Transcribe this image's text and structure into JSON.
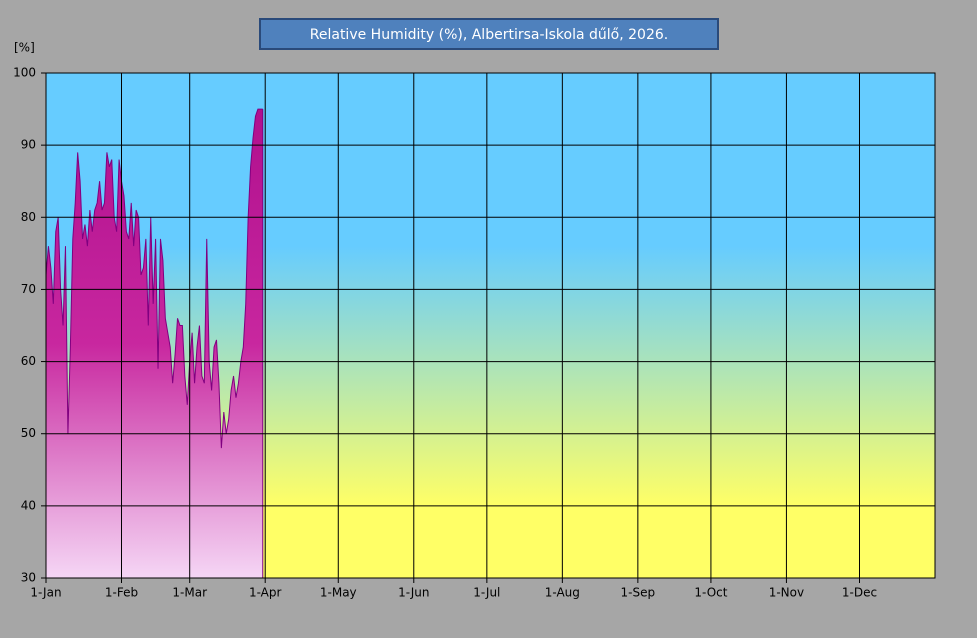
{
  "chart_data": {
    "type": "area",
    "title": "Relative Humidity (%), Albertirsa-Iskola dűlő, 2026.",
    "y_label": "[%]",
    "x": [
      0,
      1,
      2,
      3,
      4,
      5,
      6,
      7,
      8,
      9,
      10,
      11,
      12,
      13,
      14,
      15,
      16,
      17,
      18,
      19,
      20,
      21,
      22,
      23,
      24,
      25,
      26,
      27,
      28,
      29,
      30,
      31,
      32,
      33,
      34,
      35,
      36,
      37,
      38,
      39,
      40,
      41,
      42,
      43,
      44,
      45,
      46,
      47,
      48,
      49,
      50,
      51,
      52,
      53,
      54,
      55,
      56,
      57,
      58,
      59,
      60,
      61,
      62,
      63,
      64,
      65,
      66,
      67,
      68,
      69,
      70,
      71,
      72,
      73,
      74,
      75,
      76,
      77,
      78,
      79,
      80,
      81,
      82,
      83,
      84,
      85,
      86,
      87,
      88,
      89
    ],
    "values": [
      72,
      76,
      73,
      68,
      78,
      80,
      70,
      65,
      76,
      50,
      62,
      77,
      82,
      89,
      85,
      77,
      79,
      76,
      81,
      78,
      81,
      82,
      85,
      81,
      82,
      89,
      87,
      88,
      80,
      78,
      88,
      85,
      83,
      78,
      77,
      82,
      76,
      81,
      80,
      72,
      73,
      77,
      65,
      80,
      68,
      77,
      59,
      77,
      74,
      66,
      64,
      62,
      57,
      61,
      66,
      65,
      65,
      58,
      54,
      60,
      64,
      57,
      62,
      65,
      58,
      57,
      77,
      60,
      56,
      62,
      63,
      57,
      48,
      53,
      50,
      52,
      56,
      58,
      55,
      57,
      60,
      62,
      68,
      80,
      87,
      91,
      94,
      95,
      95,
      95
    ],
    "color": "#c0189c",
    "line_color": "#800080",
    "xlim": [
      0,
      365
    ],
    "xticks": [
      {
        "value": 0,
        "label": "1-Jan"
      },
      {
        "value": 31,
        "label": "1-Feb"
      },
      {
        "value": 59,
        "label": "1-Mar"
      },
      {
        "value": 90,
        "label": "1-Apr"
      },
      {
        "value": 120,
        "label": "1-May"
      },
      {
        "value": 151,
        "label": "1-Jun"
      },
      {
        "value": 181,
        "label": "1-Jul"
      },
      {
        "value": 212,
        "label": "1-Aug"
      },
      {
        "value": 243,
        "label": "1-Sep"
      },
      {
        "value": 273,
        "label": "1-Oct"
      },
      {
        "value": 304,
        "label": "1-Nov"
      },
      {
        "value": 334,
        "label": "1-Dec"
      }
    ],
    "ylim": [
      30,
      100
    ],
    "yticks": [
      30,
      40,
      50,
      60,
      70,
      80,
      90,
      100
    ],
    "grid": true
  }
}
